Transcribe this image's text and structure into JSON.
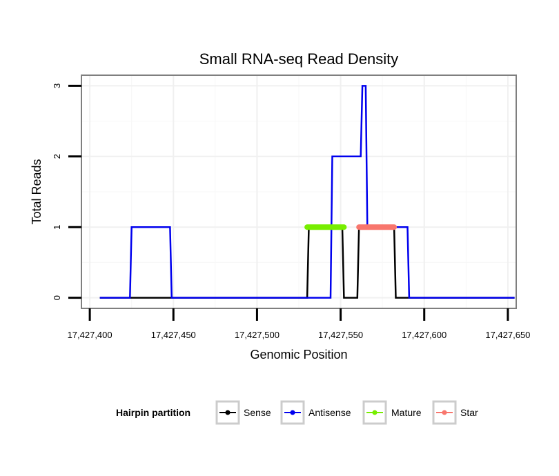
{
  "chart_data": {
    "type": "line",
    "title": "Small RNA-seq Read Density",
    "xlabel": "Genomic Position",
    "ylabel": "Total Reads",
    "xlim": [
      17427395,
      17427655
    ],
    "ylim": [
      -0.15,
      3.15
    ],
    "x_ticks": [
      17427400,
      17427450,
      17427500,
      17427550,
      17427600,
      17427650
    ],
    "x_tick_labels": [
      "17,427,400",
      "17,427,450",
      "17,427,500",
      "17,427,550",
      "17,427,600",
      "17,427,650"
    ],
    "y_ticks": [
      0,
      1,
      2,
      3
    ],
    "y_tick_labels": [
      "0",
      "1",
      "2",
      "3"
    ],
    "grid": true,
    "legend": {
      "title": "Hairpin partition",
      "position": "bottom",
      "entries": [
        "Sense",
        "Antisense",
        "Mature",
        "Star"
      ]
    },
    "series": [
      {
        "name": "Sense",
        "color": "#000000",
        "x": [
          17427406,
          17427530,
          17427531,
          17427551,
          17427552,
          17427560,
          17427561,
          17427582,
          17427583,
          17427654
        ],
        "y": [
          0,
          0,
          1,
          1,
          0,
          0,
          1,
          1,
          0,
          0
        ]
      },
      {
        "name": "Antisense",
        "color": "#0000ee",
        "x": [
          17427406,
          17427424,
          17427425,
          17427448,
          17427449,
          17427544,
          17427545,
          17427562,
          17427563,
          17427565,
          17427566,
          17427590,
          17427591,
          17427654
        ],
        "y": [
          0,
          0,
          1,
          1,
          0,
          0,
          2,
          2,
          3,
          3,
          1,
          1,
          0,
          0
        ]
      },
      {
        "name": "Mature",
        "color": "#77ee00",
        "x": [
          17427530,
          17427552
        ],
        "y": [
          1,
          1
        ]
      },
      {
        "name": "Star",
        "color": "#f8766d",
        "x": [
          17427561,
          17427582
        ],
        "y": [
          1,
          1
        ]
      }
    ]
  }
}
